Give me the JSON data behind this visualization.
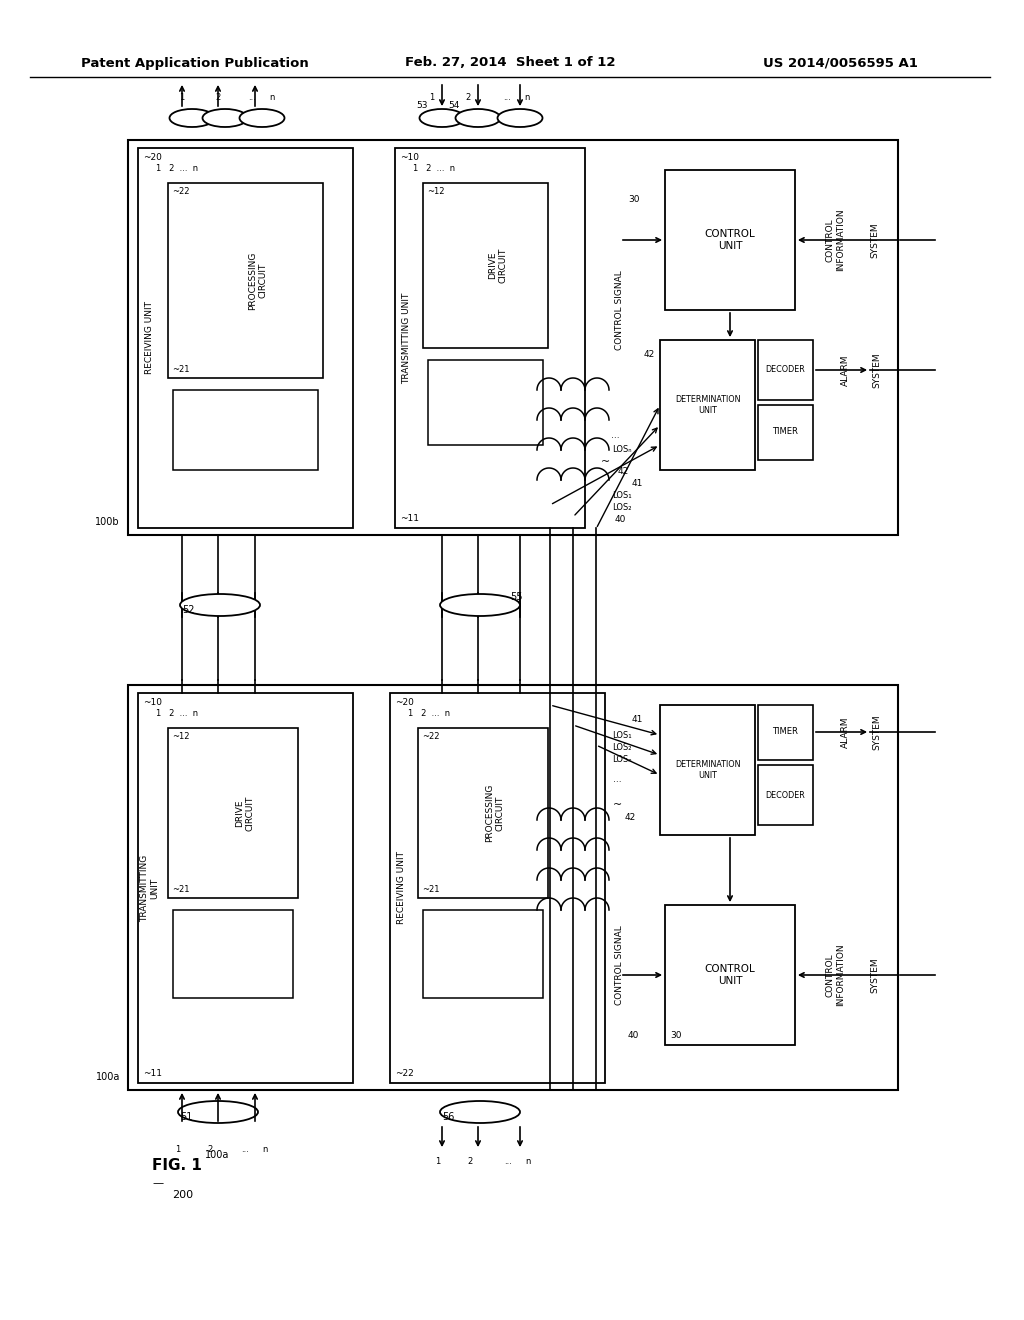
{
  "bg_color": "#ffffff",
  "header_left": "Patent Application Publication",
  "header_mid": "Feb. 27, 2014  Sheet 1 of 12",
  "header_right": "US 2014/0056595 A1"
}
